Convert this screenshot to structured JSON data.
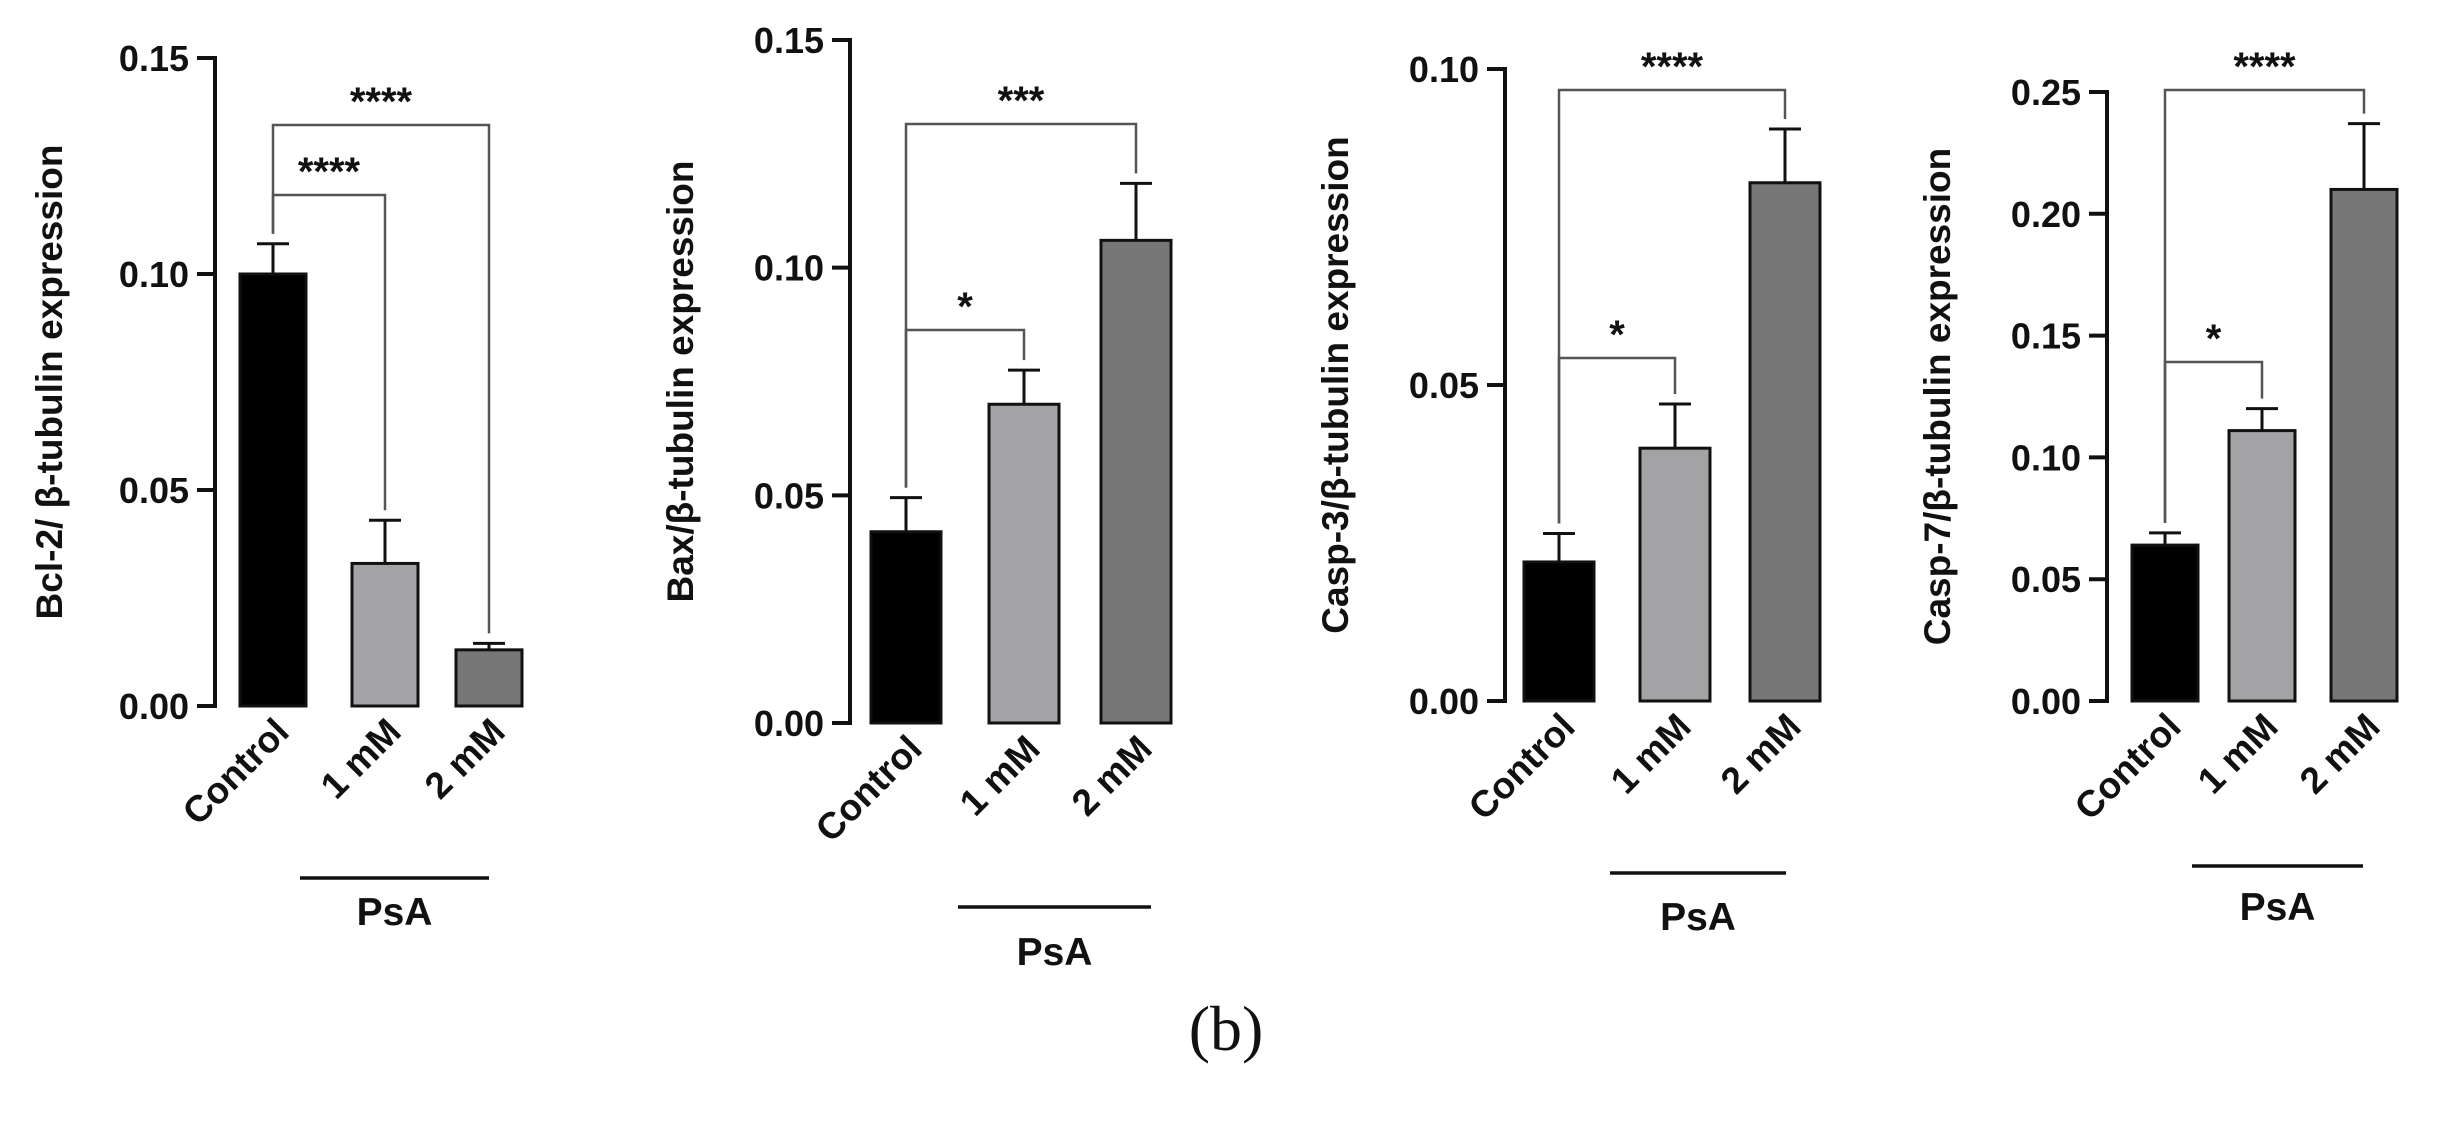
{
  "chart_data": [
    {
      "type": "bar",
      "categories": [
        "Control",
        "1 mM",
        "2 mM"
      ],
      "values": [
        0.1,
        0.033,
        0.013
      ],
      "errors": [
        0.007,
        0.01,
        0.0015
      ],
      "bar_colors": [
        "#000000",
        "#a3a3a6",
        "#777777"
      ],
      "ylabel": "Bcl-2/ β-tubulin expression",
      "ylim": [
        0,
        0.15
      ],
      "yticks": [
        "0.00",
        "0.05",
        "0.10",
        "0.15"
      ],
      "group_label": "PsA",
      "annotations": [
        {
          "from": 0,
          "to": 2,
          "text": "****"
        },
        {
          "from": 0,
          "to": 1,
          "text": "****"
        }
      ]
    },
    {
      "type": "bar",
      "categories": [
        "Control",
        "1 mM",
        "2 mM"
      ],
      "values": [
        0.042,
        0.07,
        0.106
      ],
      "errors": [
        0.0075,
        0.0075,
        0.0125
      ],
      "bar_colors": [
        "#000000",
        "#a3a3a6",
        "#777777"
      ],
      "ylabel": "Bax/β-tubulin expression",
      "ylim": [
        0,
        0.15
      ],
      "yticks": [
        "0.00",
        "0.05",
        "0.10",
        "0.15"
      ],
      "group_label": "PsA",
      "annotations": [
        {
          "from": 0,
          "to": 2,
          "text": "***"
        },
        {
          "from": 0,
          "to": 1,
          "text": "*"
        }
      ]
    },
    {
      "type": "bar",
      "categories": [
        "Control",
        "1 mM",
        "2 mM"
      ],
      "values": [
        0.022,
        0.04,
        0.082
      ],
      "errors": [
        0.0045,
        0.007,
        0.0085
      ],
      "bar_colors": [
        "#000000",
        "#a3a3a6",
        "#777777"
      ],
      "ylabel": "Casp-3/β-tubulin expression",
      "ylim": [
        0,
        0.1
      ],
      "yticks": [
        "0.00",
        "0.05",
        "0.10"
      ],
      "group_label": "PsA",
      "annotations": [
        {
          "from": 0,
          "to": 2,
          "text": "****"
        },
        {
          "from": 0,
          "to": 1,
          "text": "*"
        }
      ]
    },
    {
      "type": "bar",
      "categories": [
        "Control",
        "1 mM",
        "2 mM"
      ],
      "values": [
        0.064,
        0.111,
        0.21
      ],
      "errors": [
        0.005,
        0.009,
        0.027
      ],
      "bar_colors": [
        "#000000",
        "#a3a3a6",
        "#777777"
      ],
      "ylabel": "Casp-7/β-tubulin expression",
      "ylim": [
        0,
        0.25
      ],
      "yticks": [
        "0.00",
        "0.05",
        "0.10",
        "0.15",
        "0.20",
        "0.25"
      ],
      "group_label": "PsA",
      "annotations": [
        {
          "from": 0,
          "to": 2,
          "text": "****"
        },
        {
          "from": 0,
          "to": 1,
          "text": "*"
        }
      ]
    }
  ],
  "panel_label": "(b)"
}
